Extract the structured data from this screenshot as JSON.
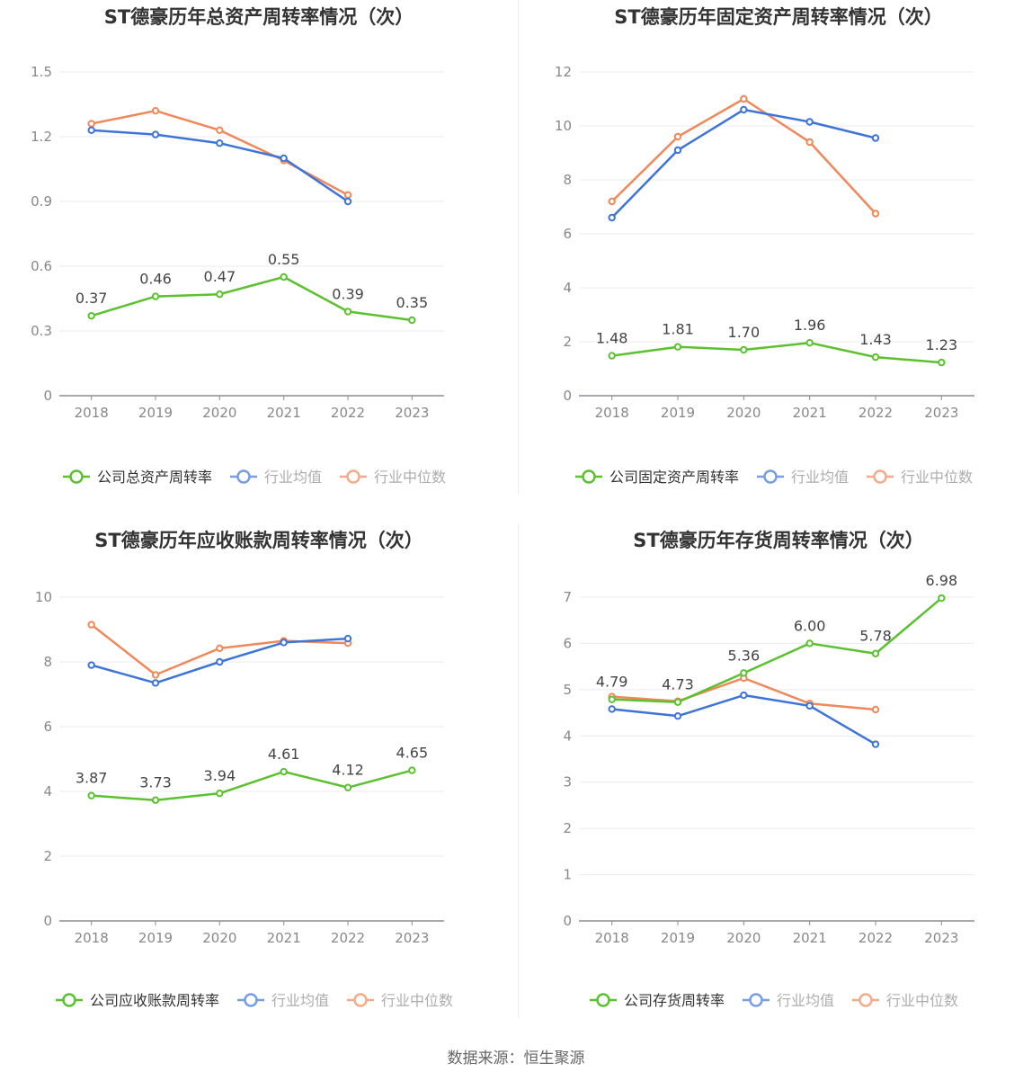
{
  "colors": {
    "company": "#5bc12f",
    "average": "#3e74d8",
    "median": "#f0885a",
    "grid": "#e8ebf3",
    "axis": "#8c8c96",
    "tick_text": "#888888",
    "title": "#333333"
  },
  "chart_data": [
    {
      "type": "line",
      "title": "ST德豪历年总资产周转率情况（次）",
      "categories": [
        "2018",
        "2019",
        "2020",
        "2021",
        "2022",
        "2023"
      ],
      "ylim": [
        0,
        1.5
      ],
      "yticks": [
        "0",
        "0.3",
        "0.6",
        "0.9",
        "1.2",
        "1.5"
      ],
      "series": [
        {
          "name": "公司总资产周转率",
          "role": "company",
          "values": [
            0.37,
            0.46,
            0.47,
            0.55,
            0.39,
            0.35
          ],
          "labels": [
            "0.37",
            "0.46",
            "0.47",
            "0.55",
            "0.39",
            "0.35"
          ]
        },
        {
          "name": "行业均值",
          "role": "average",
          "values": [
            1.23,
            1.21,
            1.17,
            1.1,
            0.9,
            null
          ]
        },
        {
          "name": "行业中位数",
          "role": "median",
          "values": [
            1.26,
            1.32,
            1.23,
            1.09,
            0.93,
            null
          ]
        }
      ]
    },
    {
      "type": "line",
      "title": "ST德豪历年固定资产周转率情况（次）",
      "categories": [
        "2018",
        "2019",
        "2020",
        "2021",
        "2022",
        "2023"
      ],
      "ylim": [
        0,
        12
      ],
      "yticks": [
        "0",
        "2",
        "4",
        "6",
        "8",
        "10",
        "12"
      ],
      "series": [
        {
          "name": "公司固定资产周转率",
          "role": "company",
          "values": [
            1.48,
            1.81,
            1.7,
            1.96,
            1.43,
            1.23
          ],
          "labels": [
            "1.48",
            "1.81",
            "1.70",
            "1.96",
            "1.43",
            "1.23"
          ]
        },
        {
          "name": "行业均值",
          "role": "average",
          "values": [
            6.6,
            9.1,
            10.6,
            10.15,
            9.55,
            null
          ]
        },
        {
          "name": "行业中位数",
          "role": "median",
          "values": [
            7.2,
            9.6,
            11.0,
            9.4,
            6.75,
            null
          ]
        }
      ]
    },
    {
      "type": "line",
      "title": "ST德豪历年应收账款周转率情况（次）",
      "categories": [
        "2018",
        "2019",
        "2020",
        "2021",
        "2022",
        "2023"
      ],
      "ylim": [
        0,
        10
      ],
      "yticks": [
        "0",
        "2",
        "4",
        "6",
        "8",
        "10"
      ],
      "series": [
        {
          "name": "公司应收账款周转率",
          "role": "company",
          "values": [
            3.87,
            3.73,
            3.94,
            4.61,
            4.12,
            4.65
          ],
          "labels": [
            "3.87",
            "3.73",
            "3.94",
            "4.61",
            "4.12",
            "4.65"
          ]
        },
        {
          "name": "行业均值",
          "role": "average",
          "values": [
            7.9,
            7.35,
            8.0,
            8.6,
            8.72,
            null
          ]
        },
        {
          "name": "行业中位数",
          "role": "median",
          "values": [
            9.15,
            7.6,
            8.42,
            8.65,
            8.58,
            null
          ]
        }
      ]
    },
    {
      "type": "line",
      "title": "ST德豪历年存货周转率情况（次）",
      "categories": [
        "2018",
        "2019",
        "2020",
        "2021",
        "2022",
        "2023"
      ],
      "ylim": [
        0,
        7
      ],
      "yticks": [
        "0",
        "1",
        "2",
        "3",
        "4",
        "5",
        "6",
        "7"
      ],
      "series": [
        {
          "name": "公司存货周转率",
          "role": "company",
          "values": [
            4.79,
            4.73,
            5.36,
            6.0,
            5.78,
            6.98
          ],
          "labels": [
            "4.79",
            "4.73",
            "5.36",
            "6.00",
            "5.78",
            "6.98"
          ]
        },
        {
          "name": "行业均值",
          "role": "average",
          "values": [
            4.58,
            4.43,
            4.88,
            4.65,
            3.82,
            null
          ]
        },
        {
          "name": "行业中位数",
          "role": "median",
          "values": [
            4.85,
            4.75,
            5.25,
            4.7,
            4.57,
            null
          ]
        }
      ]
    }
  ],
  "footer": {
    "source": "数据来源：恒生聚源"
  }
}
